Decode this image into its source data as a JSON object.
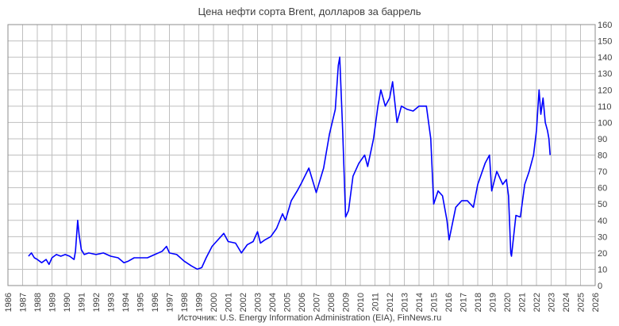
{
  "chart_data": {
    "type": "line",
    "title": "Цена нефти сорта Brent, долларов за баррель",
    "source": "Источник: U.S. Energy Information Administration (EIA), FinNews.ru",
    "xlabel": "",
    "ylabel": "",
    "xlim": [
      1986,
      2026
    ],
    "ylim": [
      0,
      160
    ],
    "y_ticks": [
      0,
      10,
      20,
      30,
      40,
      50,
      60,
      70,
      80,
      90,
      100,
      110,
      120,
      130,
      140,
      150,
      160
    ],
    "x_tick_labels": [
      "1986",
      "1987",
      "1988",
      "1989",
      "1990",
      "1991",
      "1992",
      "1993",
      "1994",
      "1995",
      "1996",
      "1997",
      "1998",
      "1999",
      "2000",
      "2001",
      "2002",
      "2003",
      "2004",
      "2005",
      "2006",
      "2007",
      "2008",
      "2009",
      "2010",
      "2011",
      "2012",
      "2013",
      "2014",
      "2015",
      "2016",
      "2017",
      "2018",
      "2019",
      "2020",
      "2021",
      "2022",
      "2023",
      "2024",
      "2025",
      "2026"
    ],
    "grid": true,
    "legend": "none",
    "color": "#0000ff",
    "series": [
      {
        "name": "Brent",
        "x": [
          1987.4,
          1987.6,
          1987.8,
          1988.0,
          1988.3,
          1988.6,
          1988.8,
          1989.0,
          1989.3,
          1989.6,
          1989.9,
          1990.2,
          1990.5,
          1990.6,
          1990.75,
          1990.85,
          1991.0,
          1991.2,
          1991.5,
          1992.0,
          1992.5,
          1993.0,
          1993.5,
          1993.9,
          1994.2,
          1994.6,
          1995.0,
          1995.5,
          1996.0,
          1996.5,
          1996.8,
          1997.0,
          1997.5,
          1998.0,
          1998.5,
          1998.9,
          1999.2,
          1999.5,
          1999.9,
          2000.2,
          2000.5,
          2000.7,
          2001.0,
          2001.5,
          2001.9,
          2002.3,
          2002.7,
          2003.0,
          2003.2,
          2003.5,
          2003.9,
          2004.3,
          2004.7,
          2004.9,
          2005.3,
          2005.7,
          2006.0,
          2006.5,
          2007.0,
          2007.5,
          2007.9,
          2008.3,
          2008.5,
          2008.6,
          2008.8,
          2009.0,
          2009.2,
          2009.5,
          2009.9,
          2010.3,
          2010.5,
          2010.9,
          2011.2,
          2011.4,
          2011.7,
          2012.0,
          2012.2,
          2012.5,
          2012.8,
          2013.2,
          2013.6,
          2014.0,
          2014.5,
          2014.8,
          2015.0,
          2015.3,
          2015.6,
          2015.9,
          2016.05,
          2016.5,
          2016.9,
          2017.3,
          2017.7,
          2018.0,
          2018.5,
          2018.8,
          2018.95,
          2019.3,
          2019.7,
          2019.95,
          2020.1,
          2020.25,
          2020.3,
          2020.6,
          2020.9,
          2021.2,
          2021.5,
          2021.8,
          2022.0,
          2022.18,
          2022.3,
          2022.45,
          2022.6,
          2022.75,
          2022.85,
          2022.93
        ],
        "values": [
          18,
          20,
          17,
          16,
          14,
          16,
          13,
          17,
          19,
          18,
          19,
          18,
          16,
          21,
          40,
          31,
          22,
          19,
          20,
          19,
          20,
          18,
          17,
          14,
          15,
          17,
          17,
          17,
          19,
          21,
          24,
          20,
          19,
          15,
          12,
          10,
          11,
          17,
          24,
          27,
          30,
          32,
          27,
          26,
          20,
          25,
          27,
          33,
          26,
          28,
          30,
          35,
          44,
          40,
          52,
          58,
          63,
          72,
          57,
          72,
          93,
          108,
          135,
          140,
          95,
          42,
          46,
          67,
          75,
          80,
          73,
          90,
          110,
          120,
          110,
          115,
          125,
          100,
          110,
          108,
          107,
          110,
          110,
          90,
          50,
          58,
          55,
          40,
          28,
          48,
          52,
          52,
          48,
          62,
          75,
          80,
          58,
          70,
          62,
          65,
          55,
          20,
          18,
          43,
          42,
          62,
          70,
          80,
          95,
          120,
          105,
          115,
          100,
          95,
          90,
          80
        ]
      }
    ]
  }
}
